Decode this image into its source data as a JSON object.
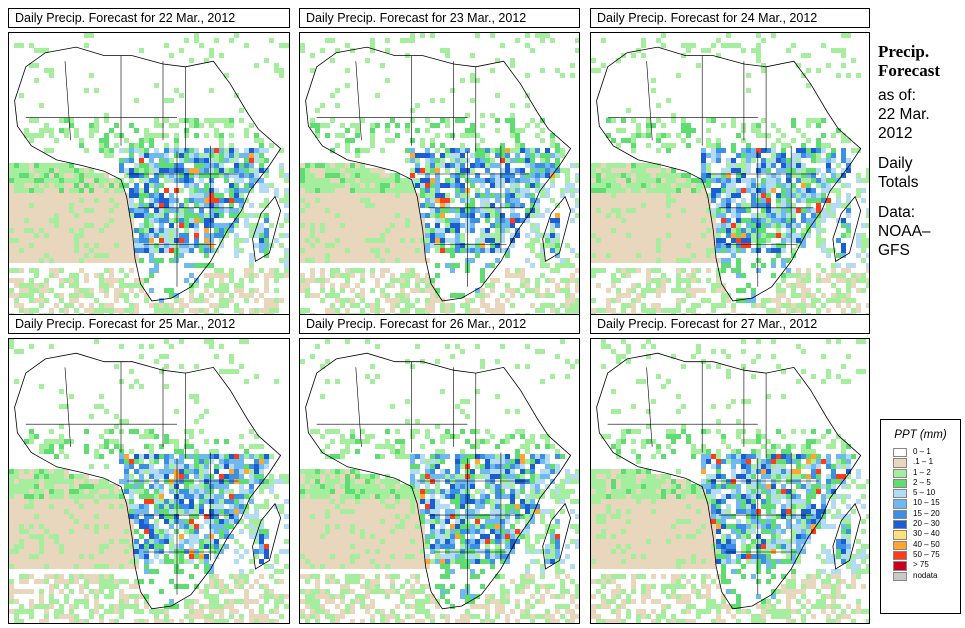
{
  "panels": [
    {
      "title": "Daily Precip. Forecast for  22 Mar., 2012",
      "seed": 1
    },
    {
      "title": "Daily Precip. Forecast for  23 Mar., 2012",
      "seed": 2
    },
    {
      "title": "Daily Precip. Forecast for  24 Mar., 2012",
      "seed": 3
    },
    {
      "title": "Daily Precip. Forecast for  25 Mar., 2012",
      "seed": 4
    },
    {
      "title": "Daily Precip. Forecast for  26 Mar., 2012",
      "seed": 5
    },
    {
      "title": "Daily Precip. Forecast for  27 Mar., 2012",
      "seed": 6
    }
  ],
  "side": {
    "title_line1": "Precip.",
    "title_line2": "Forecast",
    "asof_line1": "as of:",
    "asof_line2": "22 Mar.",
    "asof_line3": "2012",
    "daily_line1": "Daily",
    "daily_line2": "Totals",
    "data_line1": "Data:",
    "data_line2": "NOAA–",
    "data_line3": "GFS"
  },
  "legend": {
    "title": "PPT (mm)",
    "items": [
      {
        "label": "0 – 1",
        "color": "#ffffff"
      },
      {
        "label": ".1 – 1",
        "color": "#e9d7bd"
      },
      {
        "label": "1 – 2",
        "color": "#a5ee9e"
      },
      {
        "label": "2 – 5",
        "color": "#5fdc72"
      },
      {
        "label": "5 – 10",
        "color": "#b3dcf4"
      },
      {
        "label": "10 – 15",
        "color": "#70b8f0"
      },
      {
        "label": "15 – 20",
        "color": "#3d8fe4"
      },
      {
        "label": "20 – 30",
        "color": "#1a5ed2"
      },
      {
        "label": "30 – 40",
        "color": "#ffe07a"
      },
      {
        "label": "40 – 50",
        "color": "#ffa530"
      },
      {
        "label": "50 – 75",
        "color": "#ff3c1a"
      },
      {
        "label": "> 75",
        "color": "#c8001e"
      },
      {
        "label": "nodata",
        "color": "#c8c8c8"
      }
    ]
  }
}
